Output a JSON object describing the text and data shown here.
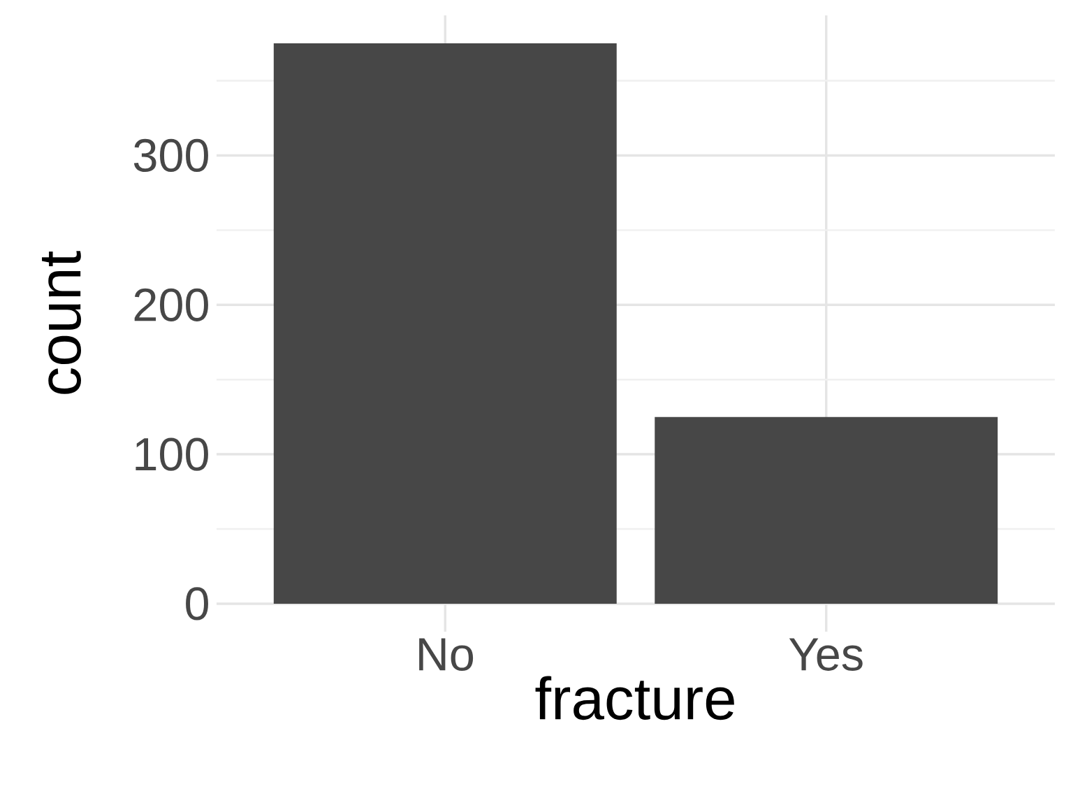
{
  "chart_data": {
    "type": "bar",
    "xlabel": "fracture",
    "ylabel": "count",
    "categories": [
      "No",
      "Yes"
    ],
    "values": [
      375,
      125
    ],
    "color": "#474747",
    "ylim": [
      -18.75,
      393.75
    ],
    "yticks": [
      0,
      {
        "value": 50,
        "label": null
      },
      100,
      {
        "value": 150,
        "label": null
      },
      200,
      {
        "value": 250,
        "label": null
      },
      300,
      {
        "value": 350,
        "label": null
      }
    ],
    "grid": true
  }
}
